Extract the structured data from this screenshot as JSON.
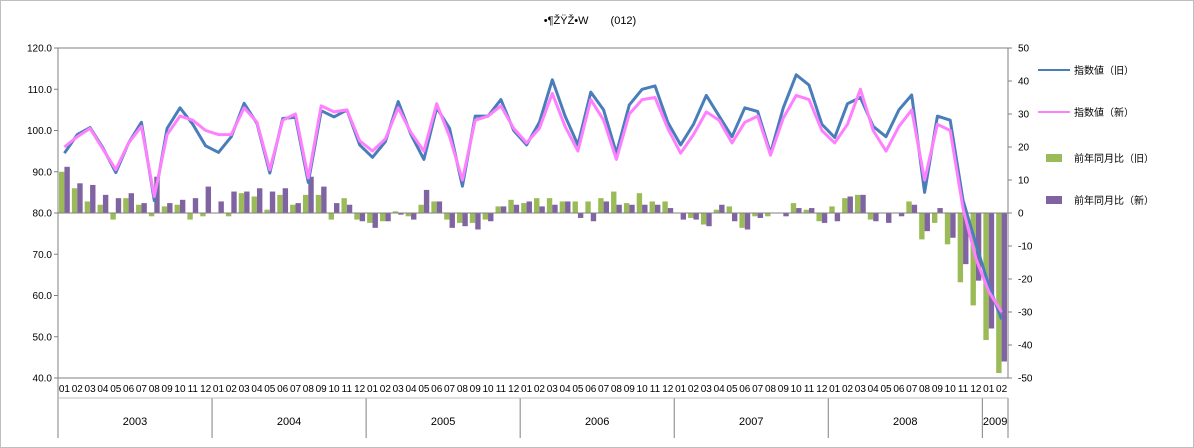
{
  "chart_data": {
    "type": "line",
    "title": "•¶ŽŸŽ•W　　(012)",
    "xlabel": "",
    "ylabel": "",
    "ylim": [
      40,
      120
    ],
    "y2lim": [
      -50,
      50
    ],
    "yticks": [
      "40.0",
      "50.0",
      "60.0",
      "70.0",
      "80.0",
      "90.0",
      "100.0",
      "110.0",
      "120.0"
    ],
    "y2ticks": [
      "-50",
      "-40",
      "-30",
      "-20",
      "-10",
      "0",
      "10",
      "20",
      "30",
      "40",
      "50"
    ],
    "grid": false,
    "legend_position": "right",
    "months": [
      "01",
      "02",
      "03",
      "04",
      "05",
      "06",
      "07",
      "08",
      "09",
      "10",
      "11",
      "12",
      "01",
      "02",
      "03",
      "04",
      "05",
      "06",
      "07",
      "08",
      "09",
      "10",
      "11",
      "12",
      "01",
      "02",
      "03",
      "04",
      "05",
      "06",
      "07",
      "08",
      "09",
      "10",
      "11",
      "12",
      "01",
      "02",
      "03",
      "04",
      "05",
      "06",
      "07",
      "08",
      "09",
      "10",
      "11",
      "12",
      "01",
      "02",
      "03",
      "04",
      "05",
      "06",
      "07",
      "08",
      "09",
      "10",
      "11",
      "12",
      "01",
      "02",
      "03",
      "04",
      "05",
      "06",
      "07",
      "08",
      "09",
      "10",
      "11",
      "12",
      "01",
      "02"
    ],
    "years": [
      {
        "label": "2003",
        "start": 0,
        "count": 12
      },
      {
        "label": "2004",
        "start": 12,
        "count": 12
      },
      {
        "label": "2005",
        "start": 24,
        "count": 12
      },
      {
        "label": "2006",
        "start": 36,
        "count": 12
      },
      {
        "label": "2007",
        "start": 48,
        "count": 12
      },
      {
        "label": "2008",
        "start": 60,
        "count": 12
      },
      {
        "label": "2009",
        "start": 72,
        "count": 2
      }
    ],
    "series": [
      {
        "name": "指数値（旧）",
        "kind": "line",
        "axis": "left",
        "color": "#4a7ebb",
        "width": 3,
        "values": [
          94.5,
          99.0,
          100.7,
          95.8,
          89.8,
          97.0,
          102.0,
          83.0,
          100.5,
          105.5,
          101.5,
          96.3,
          94.7,
          98.5,
          106.6,
          101.7,
          89.7,
          102.9,
          103.2,
          87.4,
          104.8,
          103.3,
          105.0,
          96.5,
          93.5,
          97.3,
          107.0,
          99.0,
          93.0,
          105.5,
          100.5,
          86.5,
          103.5,
          103.5,
          107.5,
          100.0,
          96.5,
          102.0,
          112.3,
          103.5,
          96.5,
          109.3,
          105.0,
          94.5,
          106.2,
          110.0,
          110.8,
          102.0,
          96.5,
          101.5,
          108.5,
          103.5,
          98.5,
          105.5,
          104.6,
          94.5,
          105.5,
          113.5,
          111.0,
          101.5,
          98.3,
          106.5,
          108.0,
          101.0,
          98.5,
          105.0,
          108.6,
          85.0,
          103.5,
          102.5,
          83.0,
          72.5,
          62.5,
          54.2
        ]
      },
      {
        "name": "指数値（新）",
        "kind": "line",
        "axis": "left",
        "color": "#ff80ff",
        "width": 3,
        "values": [
          96.0,
          98.5,
          100.5,
          95.5,
          90.5,
          97.0,
          101.0,
          84.0,
          99.0,
          103.5,
          102.5,
          100.0,
          99.0,
          99.0,
          105.5,
          102.0,
          90.5,
          102.5,
          104.0,
          88.5,
          106.0,
          104.5,
          105.0,
          97.5,
          95.0,
          98.0,
          105.5,
          99.5,
          95.0,
          106.5,
          98.5,
          88.0,
          102.5,
          103.5,
          106.0,
          100.5,
          97.0,
          100.5,
          109.0,
          101.0,
          95.0,
          107.5,
          102.5,
          93.0,
          104.0,
          107.5,
          108.0,
          100.5,
          94.5,
          99.0,
          104.5,
          102.5,
          97.0,
          102.0,
          103.5,
          94.0,
          103.0,
          108.5,
          107.5,
          100.0,
          97.0,
          101.5,
          110.0,
          100.0,
          95.0,
          101.0,
          105.0,
          88.0,
          101.5,
          100.0,
          81.0,
          69.0,
          61.0,
          56.0
        ]
      },
      {
        "name": "前年同月比（旧）",
        "kind": "bar",
        "axis": "right",
        "color": "#9bbb59",
        "values": [
          12.5,
          7.5,
          3.5,
          2.5,
          -2.0,
          4.5,
          2.5,
          -1.0,
          2.0,
          2.5,
          -2.0,
          -1.0,
          0.0,
          -1.0,
          6.0,
          5.0,
          1.0,
          5.5,
          2.5,
          5.5,
          5.5,
          -2.0,
          4.5,
          -2.0,
          -3.0,
          -2.5,
          0.5,
          -1.0,
          2.5,
          3.5,
          -2.0,
          -3.0,
          -3.0,
          -2.0,
          2.0,
          4.0,
          3.0,
          4.5,
          4.5,
          3.5,
          3.5,
          3.5,
          4.5,
          6.5,
          3.0,
          6.0,
          3.5,
          3.5,
          0.0,
          -1.5,
          -3.5,
          1.0,
          2.0,
          -4.5,
          -1.0,
          -1.0,
          0.0,
          3.0,
          1.0,
          -2.5,
          2.0,
          4.5,
          5.5,
          -2.0,
          0.0,
          0.0,
          3.5,
          -8.0,
          -3.0,
          -9.5,
          -21.0,
          -28.0,
          -38.5,
          -48.5
        ]
      },
      {
        "name": "前年同月比（新）",
        "kind": "bar",
        "axis": "right",
        "color": "#8064a2",
        "values": [
          14.0,
          9.0,
          8.5,
          5.5,
          4.5,
          6.0,
          3.0,
          11.0,
          3.0,
          4.0,
          4.5,
          8.0,
          3.5,
          6.5,
          6.5,
          7.5,
          6.5,
          7.5,
          3.0,
          11.0,
          8.0,
          3.0,
          2.5,
          -2.5,
          -4.5,
          -2.5,
          -0.5,
          -2.0,
          7.0,
          3.5,
          -4.5,
          -4.0,
          -5.0,
          -2.5,
          2.0,
          2.5,
          3.5,
          2.0,
          2.5,
          3.5,
          -1.5,
          -2.5,
          3.5,
          2.5,
          2.5,
          2.5,
          2.5,
          1.5,
          -2.0,
          -2.0,
          -4.0,
          2.5,
          -2.5,
          -5.0,
          -1.5,
          0.0,
          -1.0,
          1.5,
          1.5,
          -3.0,
          -2.5,
          5.0,
          5.5,
          -2.5,
          -3.0,
          -1.0,
          2.5,
          -5.5,
          1.5,
          -7.5,
          -15.5,
          -20.5,
          -35.0,
          -45.0
        ]
      }
    ]
  }
}
